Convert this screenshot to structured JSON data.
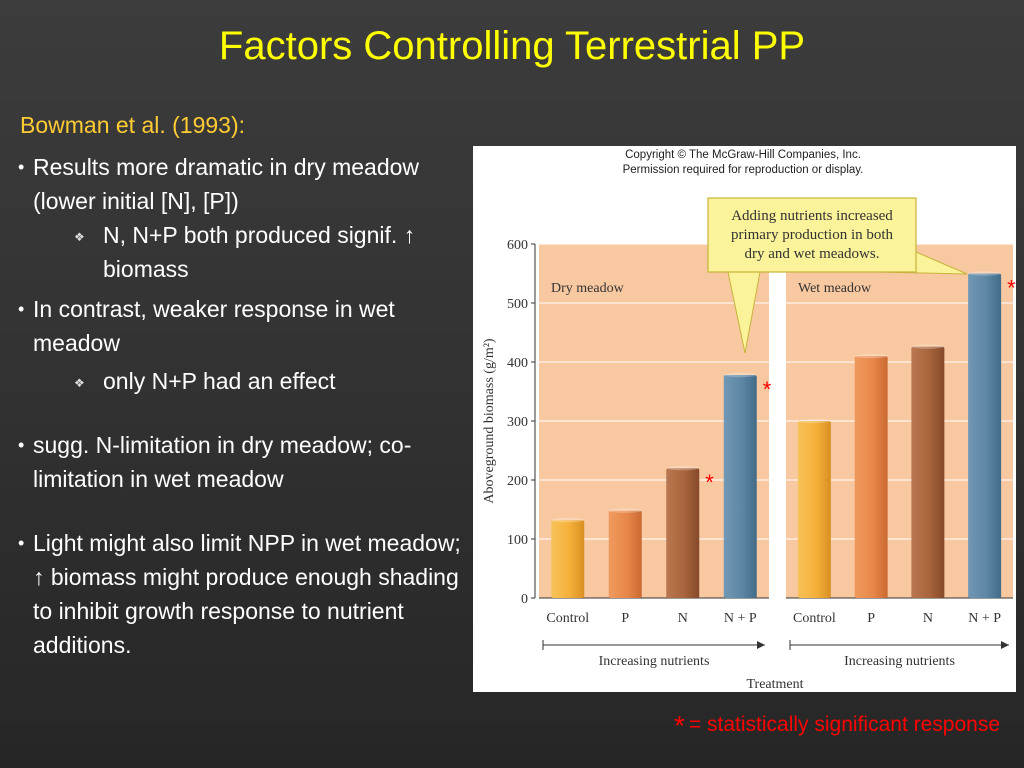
{
  "slide": {
    "title": "Factors Controlling Terrestrial PP",
    "subtitle": "Bowman et al. (1993):",
    "bullets": [
      {
        "text": "Results more dramatic in dry meadow (lower initial [N], [P])"
      },
      {
        "sub": "N, N+P both produced signif. ↑ biomass"
      },
      {
        "text": "In contrast, weaker response in wet meadow"
      },
      {
        "sub": "only N+P had an effect"
      },
      {
        "text": "sugg. N-limitation in dry meadow; co-limitation in wet meadow"
      },
      {
        "text": "Light might also limit NPP in wet meadow; ↑ biomass might produce enough shading to inhibit growth response to nutrient additions."
      }
    ],
    "footnote_star": "*",
    "footnote_text": "= statistically significant response"
  },
  "figure": {
    "copyright_line1": "Copyright © The McGraw-Hill Companies, Inc.",
    "copyright_line2": "Permission required for reproduction or display.",
    "callout_lines": [
      "Adding nutrients increased",
      "primary production in both",
      "dry and wet meadows."
    ]
  },
  "chart_data": {
    "type": "bar",
    "ylabel": "Aboveground biomass (g/m²)",
    "xlabel": "Treatment",
    "ylim": [
      0,
      600
    ],
    "yticks": [
      0,
      100,
      200,
      300,
      400,
      500,
      600
    ],
    "arrow_label": "Increasing nutrients",
    "panels": [
      {
        "name": "Dry meadow",
        "categories": [
          "Control",
          "P",
          "N",
          "N + P"
        ],
        "values": [
          132,
          148,
          220,
          378
        ],
        "significant": [
          false,
          false,
          true,
          true
        ]
      },
      {
        "name": "Wet meadow",
        "categories": [
          "Control",
          "P",
          "N",
          "N + P"
        ],
        "values": [
          300,
          410,
          426,
          550
        ],
        "significant": [
          false,
          false,
          false,
          true
        ]
      }
    ],
    "significance_marker": "*",
    "colors": {
      "panel_bg": "#f8c8a0",
      "bars": [
        "#f5b03a",
        "#e8874a",
        "#a8643c",
        "#5d87a5"
      ],
      "star": "#ff0000",
      "callout_bg": "#fbf39a",
      "callout_border": "#c7b33a"
    }
  }
}
